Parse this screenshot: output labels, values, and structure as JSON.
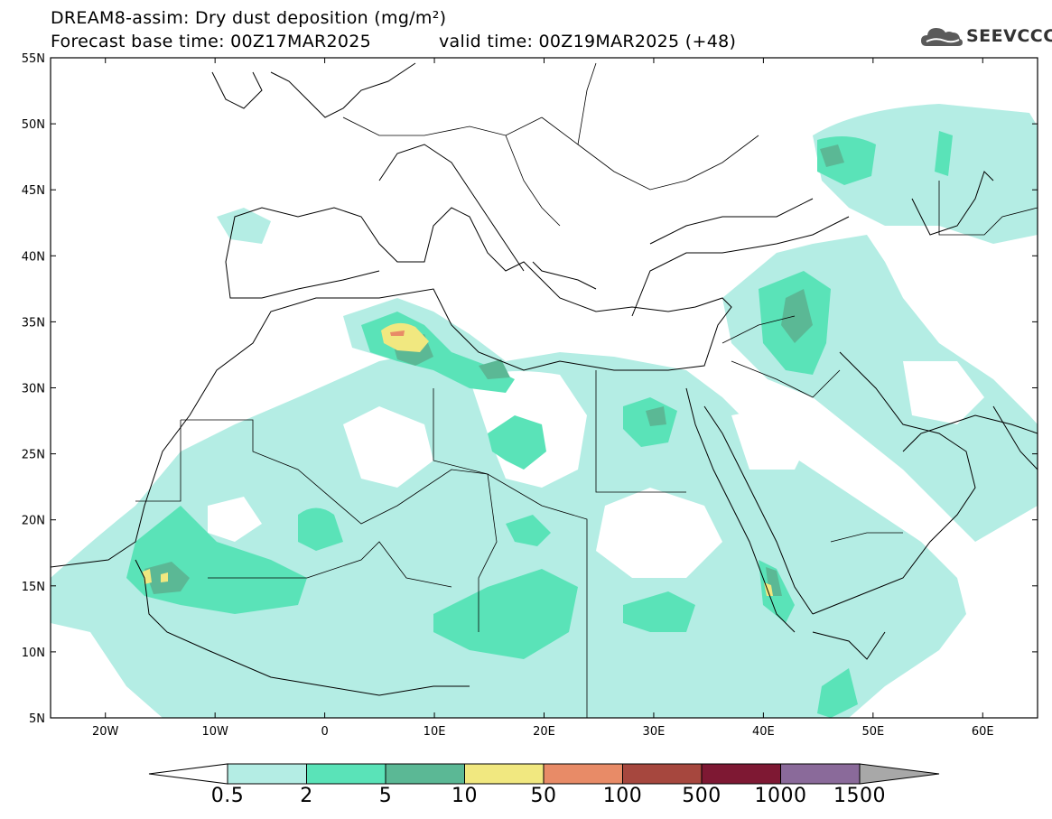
{
  "title": {
    "line1": "DREAM8-assim: Dry dust deposition (mg/m²)",
    "line2": "Forecast base time: 00Z17MAR2025",
    "valid": "valid time: 00Z19MAR2025 (+48)"
  },
  "logo": {
    "text": "SEEVCCC",
    "icon": "cloud-icon"
  },
  "axes": {
    "lon_range": [
      -25,
      65
    ],
    "lat_range": [
      5,
      55
    ],
    "x_ticks": [
      "20W",
      "10W",
      "0",
      "10E",
      "20E",
      "30E",
      "40E",
      "50E",
      "60E"
    ],
    "y_ticks": [
      "55N",
      "50N",
      "45N",
      "40N",
      "35N",
      "30N",
      "25N",
      "20N",
      "15N",
      "10N",
      "5N"
    ]
  },
  "colorbar": {
    "labels": [
      "0.5",
      "2",
      "5",
      "10",
      "50",
      "100",
      "500",
      "1000",
      "1500"
    ],
    "colors": [
      "#b4ede4",
      "#5ae3b8",
      "#5bb895",
      "#f1e880",
      "#e88b67",
      "#a6473e",
      "#7e1833",
      "#8a6a9a"
    ],
    "end_colors": {
      "under": "#ffffff",
      "over": "#a8a8a8"
    }
  }
}
